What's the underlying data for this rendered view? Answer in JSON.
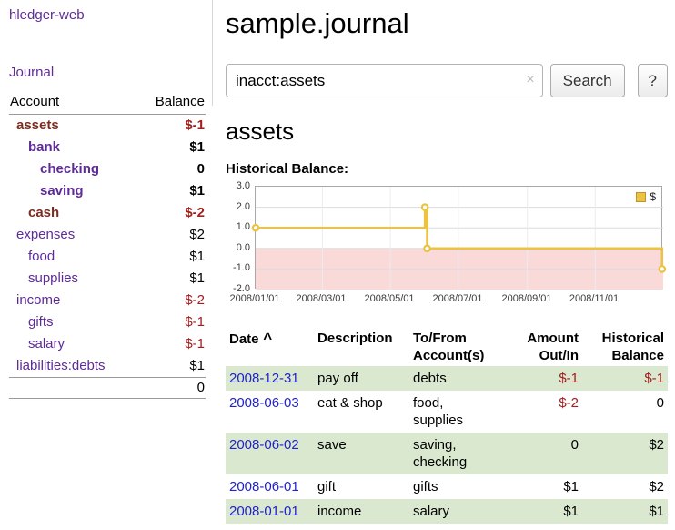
{
  "colors": {
    "purple": "#5e2b97",
    "maroon": "#7b2d21",
    "link-blue": "#2222cc",
    "negative": "#a31d1d",
    "stripe-green": "#d9e8cf",
    "chart-gold": "#edc240",
    "chart-neg-bg": "#fad9d9"
  },
  "app": {
    "title": "hledger-web"
  },
  "sidebar": {
    "journal_label": "Journal",
    "headers": {
      "account": "Account",
      "balance": "Balance"
    },
    "accounts": [
      {
        "name": "assets",
        "balance": "$-1",
        "level": 1,
        "bold": true
      },
      {
        "name": "bank",
        "balance": "$1",
        "level": 2,
        "bold": true
      },
      {
        "name": "checking",
        "balance": "0",
        "level": 3,
        "bold": true
      },
      {
        "name": "saving",
        "balance": "$1",
        "level": 3,
        "bold": true
      },
      {
        "name": "cash",
        "balance": "$-2",
        "level": 2,
        "bold": true
      },
      {
        "name": "expenses",
        "balance": "$2",
        "level": 1,
        "bold": false
      },
      {
        "name": "food",
        "balance": "$1",
        "level": 2,
        "bold": false
      },
      {
        "name": "supplies",
        "balance": "$1",
        "level": 2,
        "bold": false
      },
      {
        "name": "income",
        "balance": "$-2",
        "level": 1,
        "bold": false
      },
      {
        "name": "gifts",
        "balance": "$-1",
        "level": 2,
        "bold": false
      },
      {
        "name": "salary",
        "balance": "$-1",
        "level": 2,
        "bold": false
      },
      {
        "name": "liabilities:debts",
        "balance": "$1",
        "level": 1,
        "bold": false
      }
    ],
    "total": "0"
  },
  "main": {
    "title": "sample.journal",
    "search": {
      "value": "inacct:assets",
      "clear_icon": "×",
      "button_label": "Search",
      "help_label": "?"
    },
    "account_heading": "assets",
    "chart_label": "Historical Balance:"
  },
  "chart_data": {
    "type": "line",
    "title": "Historical Balance",
    "step": true,
    "xrange": [
      "2008-01-01",
      "2009-01-01"
    ],
    "ylim": [
      -2,
      3
    ],
    "yticks": [
      [
        3,
        "3.0"
      ],
      [
        2,
        "2.0"
      ],
      [
        1,
        "1.0"
      ],
      [
        0,
        "0.0"
      ],
      [
        -1,
        "-1.0"
      ],
      [
        -2,
        "-2.0"
      ]
    ],
    "xticks": [
      {
        "date": "2008-01-01",
        "label": "2008/01/01"
      },
      {
        "date": "2008-03-01",
        "label": "2008/03/01"
      },
      {
        "date": "2008-05-01",
        "label": "2008/05/01"
      },
      {
        "date": "2008-07-01",
        "label": "2008/07/01"
      },
      {
        "date": "2008-09-01",
        "label": "2008/09/01"
      },
      {
        "date": "2008-11-01",
        "label": "2008/11/01"
      }
    ],
    "series": [
      {
        "name": "$",
        "points": [
          {
            "date": "2008-01-01",
            "value": 1
          },
          {
            "date": "2008-06-01",
            "value": 2
          },
          {
            "date": "2008-06-03",
            "value": 0
          },
          {
            "date": "2008-12-31",
            "value": -1
          }
        ]
      }
    ],
    "legend": {
      "label": "$",
      "position": "top-right"
    },
    "grid": true
  },
  "register": {
    "headers": [
      {
        "key": "date",
        "lines": [
          "Date"
        ],
        "align": "left",
        "sort_icon": "^"
      },
      {
        "key": "description",
        "lines": [
          "Description"
        ],
        "align": "left"
      },
      {
        "key": "accounts",
        "lines": [
          "To/From",
          "Account(s)"
        ],
        "align": "left"
      },
      {
        "key": "amount",
        "lines": [
          "Amount",
          "Out/In"
        ],
        "align": "right"
      },
      {
        "key": "balance",
        "lines": [
          "Historical",
          "Balance"
        ],
        "align": "right"
      }
    ],
    "rows": [
      {
        "date": "2008-12-31",
        "description": "pay off",
        "accounts": "debts",
        "amount": "$-1",
        "balance": "$-1"
      },
      {
        "date": "2008-06-03",
        "description": "eat & shop",
        "accounts": "food, supplies",
        "amount": "$-2",
        "balance": "0"
      },
      {
        "date": "2008-06-02",
        "description": "save",
        "accounts": "saving, checking",
        "amount": "0",
        "balance": "$2"
      },
      {
        "date": "2008-06-01",
        "description": "gift",
        "accounts": "gifts",
        "amount": "$1",
        "balance": "$2"
      },
      {
        "date": "2008-01-01",
        "description": "income",
        "accounts": "salary",
        "amount": "$1",
        "balance": "$1"
      }
    ]
  }
}
